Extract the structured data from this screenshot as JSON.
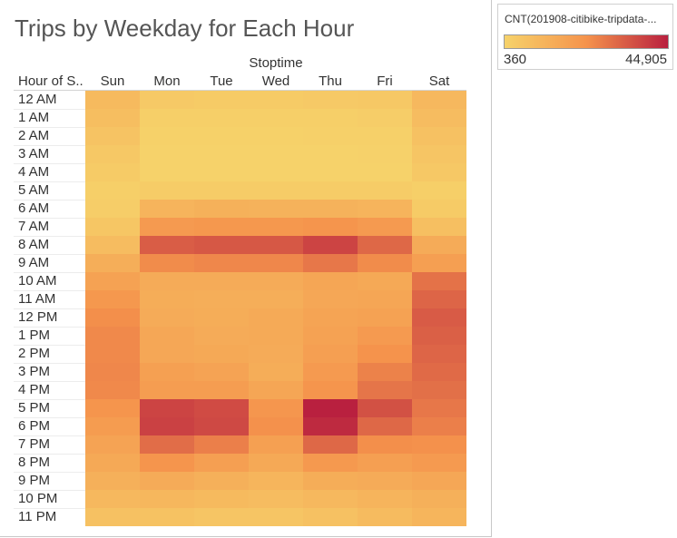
{
  "title": "Trips by Weekday for Each Hour",
  "column_axis_title": "Stoptime",
  "row_axis_title": "Hour of S..",
  "legend": {
    "title": "CNT(201908-citibike-tripdata-...",
    "min_label": "360",
    "max_label": "44,905",
    "color_low": "#f6d26a",
    "color_mid": "#f5934c",
    "color_high": "#b9203f"
  },
  "chart_data": {
    "type": "heatmap",
    "title": "Trips by Weekday for Each Hour",
    "xlabel": "Stoptime",
    "ylabel": "Hour of S..",
    "columns": [
      "Sun",
      "Mon",
      "Tue",
      "Wed",
      "Thu",
      "Fri",
      "Sat"
    ],
    "rows": [
      "12 AM",
      "1 AM",
      "2 AM",
      "3 AM",
      "4 AM",
      "5 AM",
      "6 AM",
      "7 AM",
      "8 AM",
      "9 AM",
      "10 AM",
      "11 AM",
      "12 PM",
      "1 PM",
      "2 PM",
      "3 PM",
      "4 PM",
      "5 PM",
      "6 PM",
      "7 PM",
      "8 PM",
      "9 PM",
      "10 PM",
      "11 PM"
    ],
    "value_range": [
      360,
      44905
    ],
    "values": [
      [
        9000,
        3500,
        3000,
        3000,
        3500,
        4000,
        9500
      ],
      [
        7500,
        1500,
        1500,
        1500,
        1500,
        2000,
        8000
      ],
      [
        5500,
        800,
        800,
        800,
        900,
        1000,
        6500
      ],
      [
        4000,
        500,
        500,
        500,
        500,
        600,
        5000
      ],
      [
        3000,
        400,
        400,
        400,
        400,
        500,
        4000
      ],
      [
        1500,
        2500,
        2500,
        2500,
        2500,
        2500,
        1500
      ],
      [
        2000,
        11000,
        12000,
        11500,
        11500,
        11000,
        3000
      ],
      [
        4500,
        20000,
        21000,
        21000,
        22000,
        20000,
        7000
      ],
      [
        8000,
        33000,
        34000,
        34000,
        38000,
        31000,
        14000
      ],
      [
        13000,
        24000,
        25000,
        25000,
        28000,
        24000,
        18500
      ],
      [
        17500,
        14000,
        14000,
        14000,
        16000,
        15000,
        29000
      ],
      [
        21000,
        13500,
        13000,
        13000,
        15500,
        16000,
        31500
      ],
      [
        23500,
        14000,
        13500,
        14500,
        16500,
        17500,
        33500
      ],
      [
        24500,
        15500,
        14000,
        14500,
        17500,
        20000,
        32500
      ],
      [
        24500,
        15500,
        15000,
        14000,
        18500,
        22500,
        31500
      ],
      [
        25000,
        18000,
        17000,
        13500,
        20000,
        26000,
        30500
      ],
      [
        24500,
        19000,
        19000,
        16000,
        22000,
        28500,
        29500
      ],
      [
        22000,
        38000,
        36500,
        21500,
        44905,
        35500,
        28000
      ],
      [
        19500,
        38500,
        37000,
        23000,
        43000,
        31000,
        26500
      ],
      [
        17000,
        30000,
        26500,
        18000,
        31000,
        23500,
        23000
      ],
      [
        15000,
        22000,
        18500,
        15000,
        20500,
        18500,
        20000
      ],
      [
        12500,
        14000,
        12500,
        10500,
        13500,
        14000,
        15500
      ],
      [
        9500,
        10000,
        9000,
        8000,
        9500,
        11000,
        12500
      ],
      [
        6500,
        6000,
        5000,
        5000,
        6500,
        8500,
        10500
      ]
    ]
  }
}
